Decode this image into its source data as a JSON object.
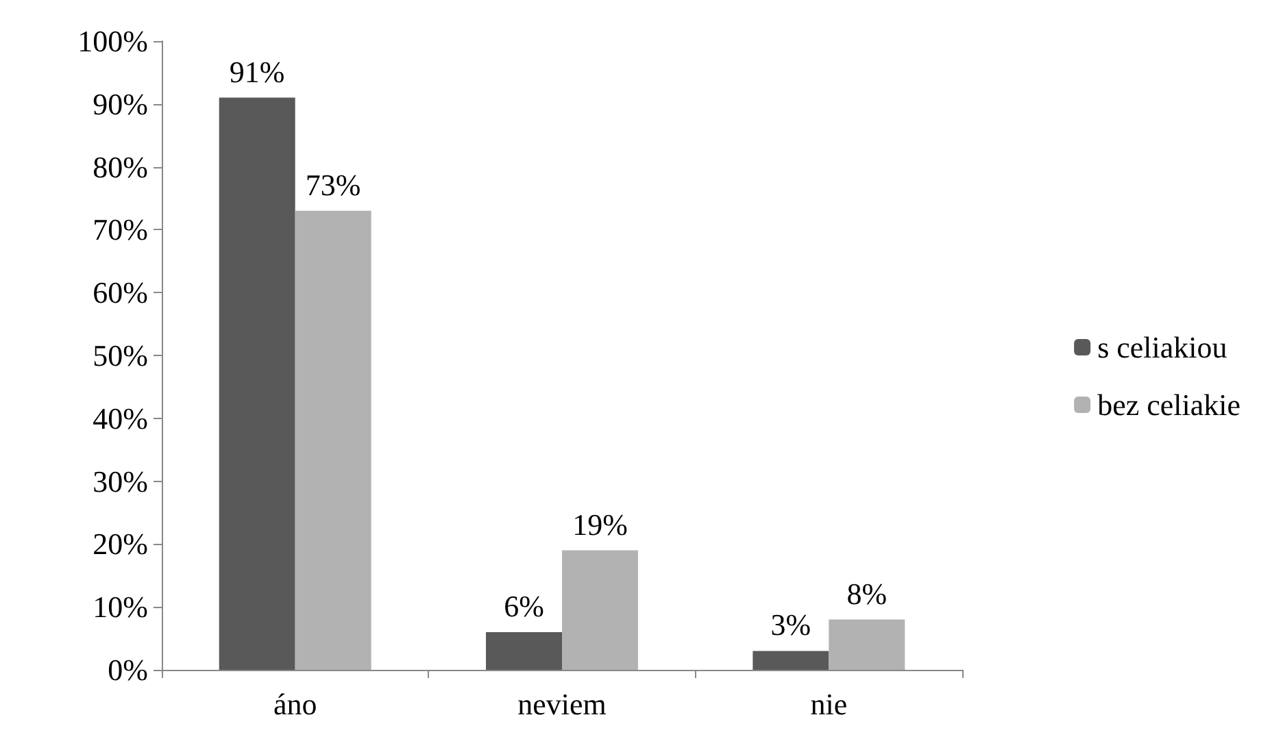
{
  "chart_data": {
    "type": "bar",
    "categories": [
      "áno",
      "neviem",
      "nie"
    ],
    "series": [
      {
        "name": "s celiakiou",
        "color": "#595959",
        "values": [
          91,
          6,
          3
        ],
        "value_labels": [
          "91%",
          "6%",
          "3%"
        ]
      },
      {
        "name": "bez celiakie",
        "color": "#b2b2b2",
        "values": [
          73,
          19,
          8
        ],
        "value_labels": [
          "73%",
          "19%",
          "8%"
        ]
      }
    ],
    "ylim": [
      0,
      100
    ],
    "yticks": [
      {
        "value": 0,
        "label": "0%"
      },
      {
        "value": 10,
        "label": "10%"
      },
      {
        "value": 20,
        "label": "20%"
      },
      {
        "value": 30,
        "label": "30%"
      },
      {
        "value": 40,
        "label": "40%"
      },
      {
        "value": 50,
        "label": "50%"
      },
      {
        "value": 60,
        "label": "60%"
      },
      {
        "value": 70,
        "label": "70%"
      },
      {
        "value": 80,
        "label": "80%"
      },
      {
        "value": 90,
        "label": "90%"
      },
      {
        "value": 100,
        "label": "100%"
      }
    ],
    "grid": false,
    "legend": "right"
  }
}
